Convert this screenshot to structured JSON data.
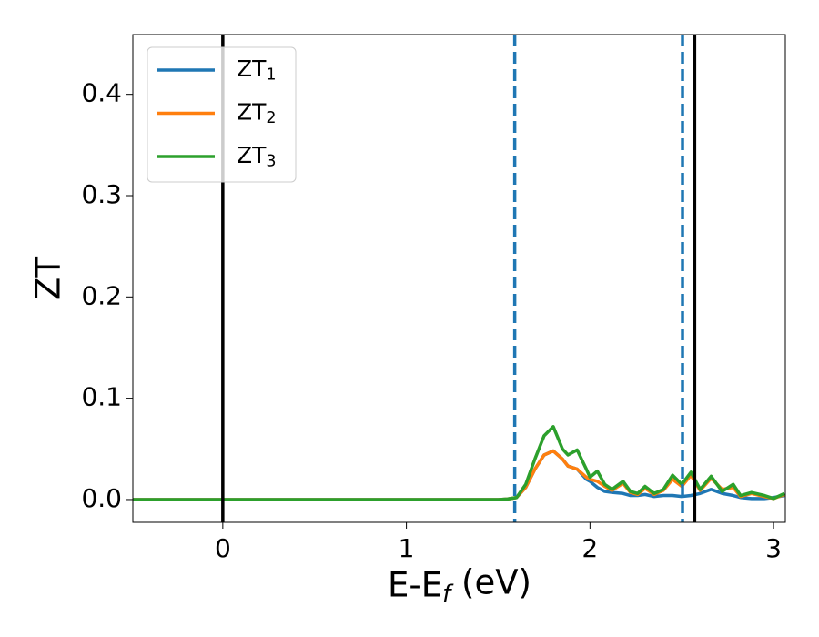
{
  "chart_data": {
    "type": "line",
    "xlabel": "E-E_f (eV)",
    "ylabel": "ZT",
    "x": [
      -0.49,
      1.5,
      1.55,
      1.6,
      1.65,
      1.7,
      1.75,
      1.8,
      1.85,
      1.88,
      1.93,
      1.98,
      2.0,
      2.04,
      2.08,
      2.12,
      2.18,
      2.22,
      2.26,
      2.3,
      2.35,
      2.4,
      2.45,
      2.5,
      2.55,
      2.6,
      2.66,
      2.72,
      2.78,
      2.82,
      2.88,
      2.95,
      3.0,
      3.06
    ],
    "series": [
      {
        "name": "ZT_1",
        "color": "#1f77b4",
        "values": [
          0,
          0,
          0.0005,
          0.002,
          0.012,
          0.03,
          0.044,
          0.048,
          0.04,
          0.033,
          0.03,
          0.02,
          0.018,
          0.012,
          0.008,
          0.007,
          0.006,
          0.004,
          0.004,
          0.005,
          0.003,
          0.004,
          0.004,
          0.003,
          0.004,
          0.006,
          0.01,
          0.006,
          0.004,
          0.002,
          0.001,
          0.001,
          0.002,
          0.004
        ]
      },
      {
        "name": "ZT_2",
        "color": "#ff7f0e",
        "values": [
          0,
          0,
          0.0005,
          0.002,
          0.012,
          0.03,
          0.044,
          0.048,
          0.04,
          0.033,
          0.03,
          0.022,
          0.02,
          0.018,
          0.013,
          0.009,
          0.016,
          0.007,
          0.005,
          0.011,
          0.005,
          0.009,
          0.02,
          0.013,
          0.024,
          0.009,
          0.021,
          0.01,
          0.012,
          0.003,
          0.006,
          0.003,
          0.001,
          0.005
        ]
      },
      {
        "name": "ZT_3",
        "color": "#2ca02c",
        "values": [
          0,
          0,
          0.0005,
          0.002,
          0.015,
          0.04,
          0.063,
          0.072,
          0.05,
          0.044,
          0.049,
          0.03,
          0.022,
          0.028,
          0.015,
          0.01,
          0.018,
          0.008,
          0.006,
          0.013,
          0.006,
          0.01,
          0.024,
          0.015,
          0.027,
          0.01,
          0.023,
          0.008,
          0.015,
          0.004,
          0.007,
          0.004,
          0.001,
          0.006
        ]
      }
    ],
    "vlines": [
      {
        "x": 0,
        "color": "#000000",
        "style": "solid"
      },
      {
        "x": 2.57,
        "color": "#000000",
        "style": "solid"
      },
      {
        "x": 1.59,
        "color": "#1f77b4",
        "style": "dashed"
      },
      {
        "x": 2.504,
        "color": "#1f77b4",
        "style": "dashed"
      }
    ],
    "xlim": [
      -0.49,
      3.064
    ],
    "ylim": [
      -0.0225,
      0.459
    ],
    "xticks": [
      0,
      1,
      2,
      3
    ],
    "yticks": [
      {
        "value": 0,
        "label": "0.0"
      },
      0.1,
      0.2,
      0.3,
      0.4
    ],
    "legend": "upper left"
  }
}
